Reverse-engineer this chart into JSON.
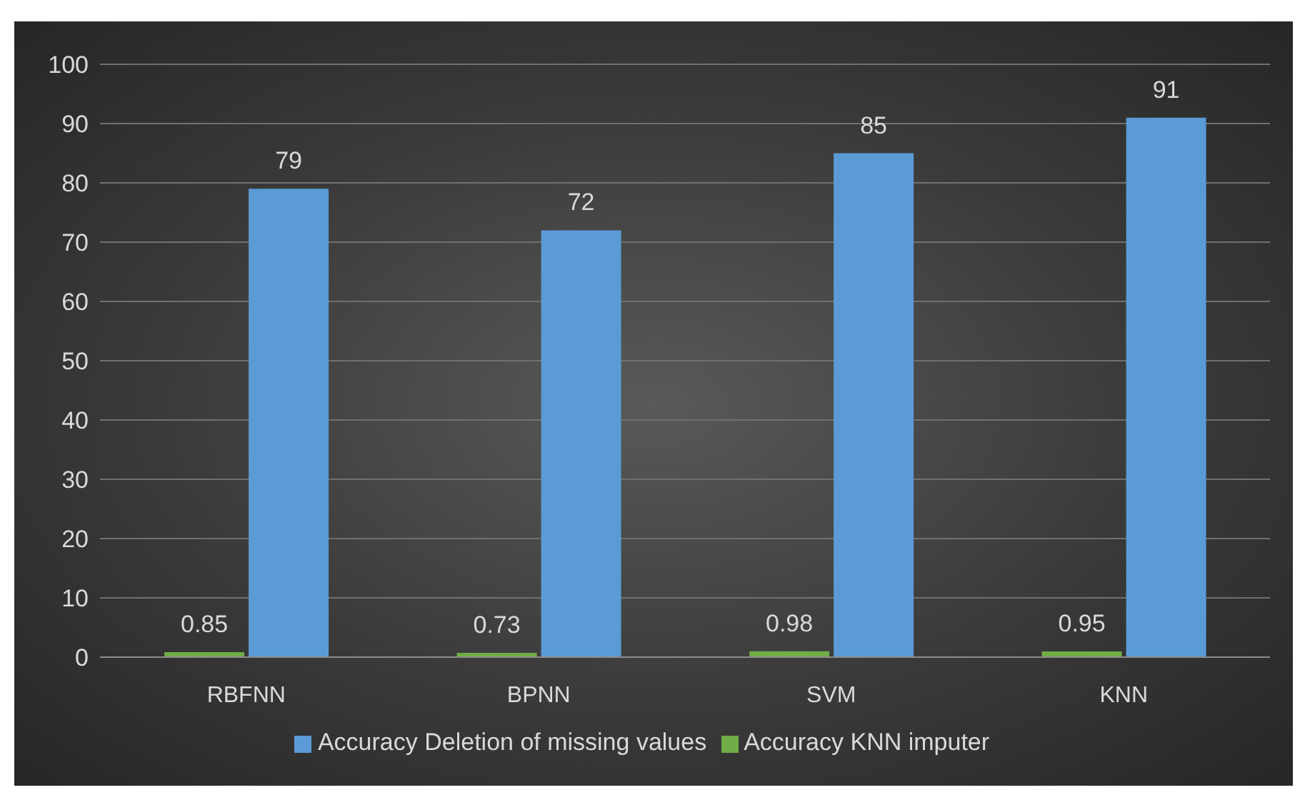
{
  "chart_data": {
    "type": "bar",
    "categories": [
      "RBFNN",
      "BPNN",
      "SVM",
      "KNN"
    ],
    "series": [
      {
        "name": "Accuracy KNN imputer",
        "color": "#70ad47",
        "values": [
          0.85,
          0.73,
          0.98,
          0.95
        ]
      },
      {
        "name": "Accuracy Deletion of missing values",
        "color": "#5b9bd5",
        "values": [
          79,
          72,
          85,
          91
        ]
      }
    ],
    "ylim": [
      0,
      100
    ],
    "yticks": [
      0,
      10,
      20,
      30,
      40,
      50,
      60,
      70,
      80,
      90,
      100
    ],
    "grid": "y",
    "legend": "bottom",
    "data_labels": true
  }
}
